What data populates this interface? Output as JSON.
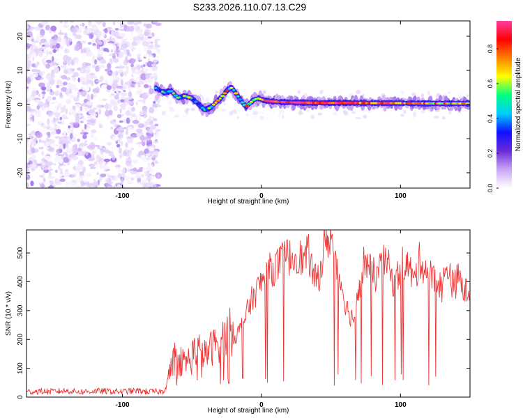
{
  "title": "S233.2026.110.07.13.C29",
  "chart_data": [
    {
      "type": "heatmap",
      "xlabel": "Height of straight line (km)",
      "ylabel": "Frequency (Hz)",
      "xlim": [
        -169,
        150
      ],
      "ylim": [
        -24.5,
        24.5
      ],
      "x_ticks": [
        "-100",
        "0",
        "100"
      ],
      "x_tick_values": [
        -100,
        0,
        100
      ],
      "y_ticks": [
        "20",
        "10",
        "0",
        "-10",
        "-20"
      ],
      "y_tick_values": [
        20,
        10,
        0,
        -10,
        -20
      ],
      "colorbar": {
        "label": "Normalized spectral amplitude",
        "range": [
          0,
          0.96
        ],
        "ticks": [
          "0.8",
          "0.6",
          "0.4",
          "0.2",
          "0.0"
        ],
        "tick_values": [
          0.8,
          0.6,
          0.4,
          0.2,
          0.0
        ],
        "colormap": [
          "#ffffff",
          "#c9a7f5",
          "#6a2bd8",
          "#1010ff",
          "#00ccff",
          "#00ff80",
          "#ffff00",
          "#ff8000",
          "#ff0000",
          "#ff3fa0"
        ]
      },
      "noise_region_x": [
        -169,
        -74
      ],
      "ridge": {
        "x": [
          -76,
          -70,
          -65,
          -60,
          -55,
          -50,
          -45,
          -41,
          -37,
          -33,
          -29,
          -25,
          -22,
          -20,
          -17,
          -14,
          -11,
          -8,
          -5,
          -2,
          2,
          8,
          15,
          25,
          40,
          60,
          80,
          100,
          120,
          140,
          150
        ],
        "y": [
          4.8,
          3.5,
          4.0,
          2.0,
          2.5,
          1.8,
          0.0,
          -1.5,
          -1.0,
          0.5,
          2.0,
          4.0,
          5.0,
          4.2,
          2.5,
          0.8,
          -0.6,
          0.5,
          1.5,
          1.8,
          1.2,
          0.9,
          0.7,
          0.6,
          0.5,
          0.5,
          0.4,
          0.4,
          0.3,
          0.3,
          0.3
        ],
        "amplitude": [
          0.45,
          0.5,
          0.55,
          0.45,
          0.5,
          0.5,
          0.45,
          0.5,
          0.55,
          0.6,
          0.6,
          0.65,
          0.55,
          0.6,
          0.6,
          0.55,
          0.7,
          0.55,
          0.55,
          0.6,
          0.75,
          0.9,
          0.95,
          0.9,
          0.9,
          0.85,
          0.8,
          0.75,
          0.7,
          0.7,
          0.7
        ]
      }
    },
    {
      "type": "line",
      "xlabel": "Height of straight line (km)",
      "ylabel": "SNR (10 * v/v)",
      "xlim": [
        -169,
        150
      ],
      "ylim": [
        0,
        580
      ],
      "x_ticks": [
        "-100",
        "0",
        "100"
      ],
      "x_tick_values": [
        -100,
        0,
        100
      ],
      "y_ticks": [
        "500",
        "400",
        "300",
        "200",
        "100",
        "0"
      ],
      "y_tick_values": [
        500,
        400,
        300,
        200,
        100,
        0
      ],
      "series": [
        {
          "color": "#ee3333",
          "x": [
            -169,
            -160,
            -150,
            -140,
            -130,
            -120,
            -110,
            -100,
            -90,
            -80,
            -70,
            -66,
            -62,
            -58,
            -54,
            -50,
            -46,
            -42,
            -38,
            -34,
            -30,
            -26,
            -22,
            -18,
            -14,
            -10,
            -6,
            -2,
            2,
            6,
            10,
            14,
            18,
            22,
            26,
            30,
            34,
            38,
            42,
            46,
            50,
            54,
            58,
            62,
            66,
            70,
            74,
            78,
            82,
            86,
            90,
            94,
            98,
            102,
            106,
            110,
            114,
            118,
            122,
            126,
            130,
            134,
            138,
            142,
            146,
            150
          ],
          "y": [
            18,
            20,
            19,
            22,
            18,
            21,
            20,
            19,
            22,
            18,
            20,
            85,
            160,
            130,
            120,
            150,
            170,
            140,
            160,
            180,
            190,
            210,
            230,
            210,
            250,
            300,
            350,
            380,
            420,
            440,
            450,
            470,
            490,
            480,
            500,
            470,
            500,
            400,
            430,
            540,
            560,
            450,
            380,
            300,
            270,
            350,
            480,
            440,
            420,
            450,
            480,
            400,
            420,
            470,
            450,
            400,
            480,
            440,
            420,
            400,
            380,
            460,
            380,
            420,
            360,
            380
          ]
        }
      ]
    }
  ]
}
